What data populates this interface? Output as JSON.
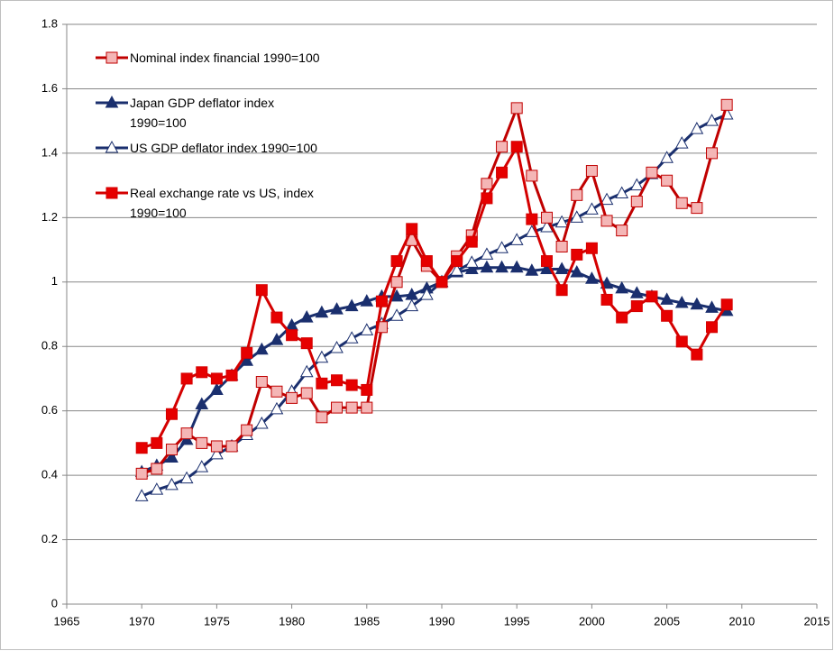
{
  "chart_data": {
    "type": "line",
    "x": [
      1970,
      1971,
      1972,
      1973,
      1974,
      1975,
      1976,
      1977,
      1978,
      1979,
      1980,
      1981,
      1982,
      1983,
      1984,
      1985,
      1986,
      1987,
      1988,
      1989,
      1990,
      1991,
      1992,
      1993,
      1994,
      1995,
      1996,
      1997,
      1998,
      1999,
      2000,
      2001,
      2002,
      2003,
      2004,
      2005,
      2006,
      2007,
      2008,
      2009
    ],
    "series": [
      {
        "name": "Nominal index financial 1990=100",
        "color": "#c00000",
        "marker": "square",
        "marker_fill": "#f4b6b6",
        "values": [
          0.405,
          0.42,
          0.48,
          0.53,
          0.5,
          0.49,
          0.49,
          0.54,
          0.69,
          0.66,
          0.64,
          0.655,
          0.58,
          0.61,
          0.61,
          0.61,
          0.86,
          1.0,
          1.13,
          1.05,
          1.0,
          1.08,
          1.145,
          1.305,
          1.42,
          1.54,
          1.33,
          1.2,
          1.11,
          1.27,
          1.345,
          1.19,
          1.16,
          1.25,
          1.34,
          1.315,
          1.245,
          1.23,
          1.4,
          1.55
        ]
      },
      {
        "name": "Japan GDP deflator index 1990=100",
        "color": "#1a2f6e",
        "marker": "triangle",
        "marker_fill": "#1a2f6e",
        "values": [
          0.41,
          0.43,
          0.455,
          0.51,
          0.62,
          0.665,
          0.71,
          0.755,
          0.79,
          0.82,
          0.865,
          0.89,
          0.905,
          0.915,
          0.925,
          0.94,
          0.955,
          0.955,
          0.96,
          0.98,
          1.0,
          1.03,
          1.04,
          1.045,
          1.045,
          1.045,
          1.035,
          1.04,
          1.04,
          1.03,
          1.01,
          0.995,
          0.98,
          0.965,
          0.955,
          0.945,
          0.935,
          0.93,
          0.92,
          0.91
        ]
      },
      {
        "name": "US GDP deflator index 1990=100",
        "color": "#1a2f6e",
        "marker": "triangle",
        "marker_fill": "#ffffff",
        "values": [
          0.335,
          0.355,
          0.37,
          0.39,
          0.425,
          0.465,
          0.49,
          0.525,
          0.56,
          0.605,
          0.66,
          0.72,
          0.765,
          0.795,
          0.825,
          0.85,
          0.87,
          0.895,
          0.925,
          0.96,
          1.0,
          1.035,
          1.06,
          1.085,
          1.105,
          1.13,
          1.155,
          1.17,
          1.185,
          1.2,
          1.225,
          1.255,
          1.275,
          1.3,
          1.335,
          1.385,
          1.43,
          1.475,
          1.5,
          1.52
        ]
      },
      {
        "name": "Real exchange rate vs US, index 1990=100",
        "color": "#d40000",
        "marker": "square",
        "marker_fill": "#e60000",
        "values": [
          0.485,
          0.5,
          0.59,
          0.7,
          0.72,
          0.7,
          0.71,
          0.78,
          0.975,
          0.89,
          0.835,
          0.81,
          0.685,
          0.695,
          0.68,
          0.665,
          0.94,
          1.065,
          1.165,
          1.065,
          1.0,
          1.065,
          1.125,
          1.26,
          1.34,
          1.42,
          1.195,
          1.065,
          0.975,
          1.085,
          1.105,
          0.945,
          0.89,
          0.925,
          0.955,
          0.895,
          0.815,
          0.775,
          0.86,
          0.93
        ]
      }
    ],
    "xlim": [
      1965,
      2015
    ],
    "xticks": [
      1965,
      1970,
      1975,
      1980,
      1985,
      1990,
      1995,
      2000,
      2005,
      2010,
      2015
    ],
    "ylim": [
      0,
      1.8
    ],
    "yticks": [
      0,
      0.2,
      0.4,
      0.6,
      0.8,
      1,
      1.2,
      1.4,
      1.6,
      1.8
    ],
    "grid": true,
    "legend": "upper left"
  }
}
